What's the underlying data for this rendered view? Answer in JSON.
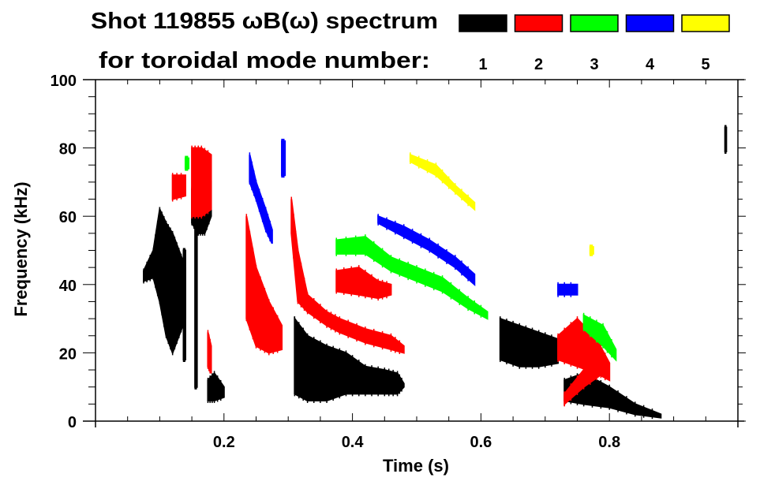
{
  "chart_data": {
    "type": "heatmap",
    "title_line1": "Shot 119855 ωB(ω) spectrum",
    "title_line2": "for toroidal mode number:",
    "xlabel": "Time (s)",
    "ylabel": "Frequency (kHz)",
    "xlim": [
      0.0,
      1.0
    ],
    "ylim": [
      0,
      100
    ],
    "xticks": [
      0.2,
      0.4,
      0.6,
      0.8
    ],
    "xtick_labels": [
      "0.2",
      "0.4",
      "0.6",
      "0.8"
    ],
    "yticks": [
      0,
      20,
      40,
      60,
      80,
      100
    ],
    "ytick_labels": [
      "0",
      "20",
      "40",
      "60",
      "80",
      "100"
    ],
    "x_minor_step": 0.05,
    "y_minor_step": 5,
    "legend_placement": "top-right",
    "legend": [
      {
        "label": "1",
        "color": "#000000"
      },
      {
        "label": "2",
        "color": "#ff0000"
      },
      {
        "label": "3",
        "color": "#00ff00"
      },
      {
        "label": "4",
        "color": "#0000ff"
      },
      {
        "label": "5",
        "color": "#ffff00"
      }
    ],
    "series": [
      {
        "name": "n=1",
        "color": "#000000",
        "regions": [
          [
            [
              0.075,
              41,
              44
            ],
            [
              0.09,
              42,
              50
            ],
            [
              0.1,
              35,
              62
            ],
            [
              0.11,
              25,
              58
            ],
            [
              0.12,
              20,
              55
            ],
            [
              0.13,
              25,
              50
            ],
            [
              0.14,
              30,
              45
            ]
          ],
          [
            [
              0.15,
              58,
              68
            ],
            [
              0.16,
              55,
              70
            ],
            [
              0.17,
              55,
              70
            ],
            [
              0.18,
              60,
              70
            ]
          ],
          [
            [
              0.155,
              10,
              60
            ],
            [
              0.158,
              10,
              60
            ]
          ],
          [
            [
              0.137,
              18,
              50
            ],
            [
              0.14,
              18,
              50
            ]
          ],
          [
            [
              0.175,
              6,
              12
            ],
            [
              0.185,
              6,
              14
            ],
            [
              0.2,
              7,
              10
            ]
          ],
          [
            [
              0.31,
              8,
              30
            ],
            [
              0.33,
              6,
              25
            ],
            [
              0.36,
              6,
              22
            ],
            [
              0.39,
              8,
              20
            ],
            [
              0.42,
              8,
              16
            ],
            [
              0.45,
              8,
              15
            ],
            [
              0.47,
              8,
              14
            ],
            [
              0.48,
              10,
              11
            ]
          ],
          [
            [
              0.63,
              18,
              30
            ],
            [
              0.66,
              16,
              28
            ],
            [
              0.69,
              16,
              26
            ],
            [
              0.72,
              17,
              24
            ]
          ],
          [
            [
              0.73,
              6,
              12
            ],
            [
              0.76,
              5,
              14
            ],
            [
              0.8,
              4,
              10
            ],
            [
              0.84,
              2,
              5
            ],
            [
              0.88,
              1,
              2
            ]
          ],
          [
            [
              0.98,
              79,
              86
            ],
            [
              0.982,
              79,
              86
            ]
          ]
        ]
      },
      {
        "name": "n=2",
        "color": "#ff0000",
        "regions": [
          [
            [
              0.12,
              65,
              72
            ],
            [
              0.14,
              66,
              72
            ]
          ],
          [
            [
              0.15,
              60,
              80
            ],
            [
              0.165,
              60,
              80
            ],
            [
              0.18,
              62,
              78
            ]
          ],
          [
            [
              0.175,
              16,
              26
            ],
            [
              0.18,
              14,
              22
            ]
          ],
          [
            [
              0.235,
              30,
              60
            ],
            [
              0.25,
              22,
              45
            ],
            [
              0.27,
              20,
              35
            ],
            [
              0.29,
              21,
              28
            ]
          ],
          [
            [
              0.305,
              55,
              65
            ],
            [
              0.315,
              35,
              50
            ],
            [
              0.33,
              32,
              37
            ],
            [
              0.36,
              28,
              32
            ],
            [
              0.38,
              26,
              30
            ],
            [
              0.42,
              23,
              27
            ],
            [
              0.46,
              21,
              25
            ],
            [
              0.48,
              20,
              22
            ]
          ],
          [
            [
              0.375,
              38,
              44
            ],
            [
              0.41,
              37,
              45
            ],
            [
              0.44,
              36,
              41
            ],
            [
              0.46,
              37,
              40
            ]
          ],
          [
            [
              0.72,
              18,
              25
            ],
            [
              0.75,
              16,
              30
            ],
            [
              0.78,
              14,
              24
            ],
            [
              0.8,
              12,
              17
            ]
          ],
          [
            [
              0.73,
              5,
              8
            ],
            [
              0.76,
              10,
              15
            ],
            [
              0.79,
              14,
              18
            ]
          ]
        ]
      },
      {
        "name": "n=3",
        "color": "#00ff00",
        "regions": [
          [
            [
              0.375,
              49,
              53
            ],
            [
              0.42,
              49,
              54
            ],
            [
              0.46,
              44,
              48
            ],
            [
              0.5,
              41,
              45
            ],
            [
              0.54,
              38,
              42
            ],
            [
              0.58,
              33,
              36
            ],
            [
              0.61,
              30,
              32
            ]
          ],
          [
            [
              0.76,
              27,
              31
            ],
            [
              0.79,
              22,
              28
            ],
            [
              0.81,
              18,
              21
            ]
          ],
          [
            [
              0.14,
              74,
              77
            ],
            [
              0.145,
              74,
              77
            ]
          ]
        ]
      },
      {
        "name": "n=4",
        "color": "#0000ff",
        "regions": [
          [
            [
              0.24,
              70,
              78
            ],
            [
              0.25,
              65,
              70
            ],
            [
              0.265,
              56,
              62
            ],
            [
              0.275,
              52,
              56
            ]
          ],
          [
            [
              0.44,
              58,
              60
            ],
            [
              0.48,
              54,
              57
            ],
            [
              0.52,
              50,
              53
            ],
            [
              0.56,
              45,
              48
            ],
            [
              0.59,
              40,
              43
            ]
          ],
          [
            [
              0.29,
              72,
              82
            ],
            [
              0.295,
              72,
              82
            ]
          ],
          [
            [
              0.72,
              37,
              40
            ],
            [
              0.75,
              37,
              40
            ]
          ]
        ]
      },
      {
        "name": "n=5",
        "color": "#ffff00",
        "regions": [
          [
            [
              0.49,
              76,
              78
            ],
            [
              0.53,
              72,
              75
            ],
            [
              0.56,
              67,
              69
            ],
            [
              0.59,
              62,
              64
            ]
          ],
          [
            [
              0.77,
              49,
              51
            ],
            [
              0.775,
              49,
              51
            ]
          ]
        ]
      }
    ]
  }
}
